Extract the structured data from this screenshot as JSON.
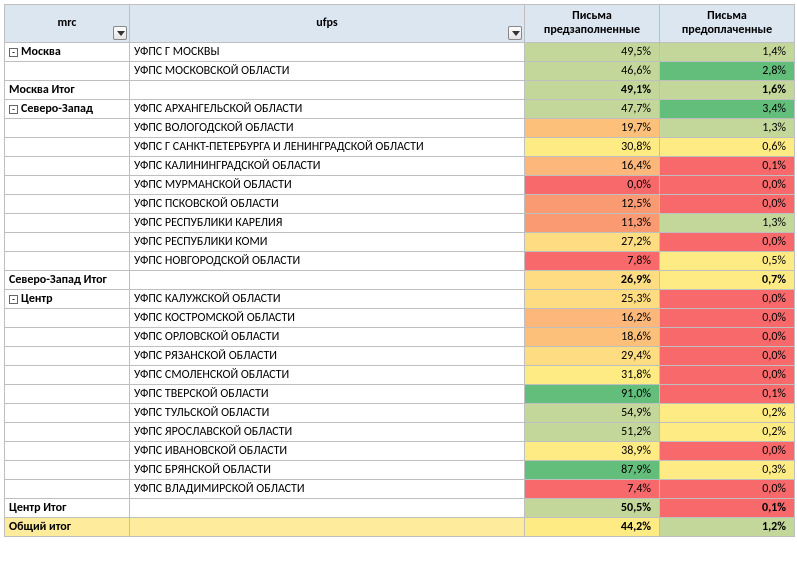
{
  "columns": {
    "mrc": "mrc",
    "ufps": "ufps",
    "v1": "Письма предзаполненные",
    "v2": "Письма предоплаченные"
  },
  "groups": [
    {
      "name": "Москва",
      "rows": [
        {
          "ufps": "УФПС Г МОСКВЫ",
          "v1": "49,5%",
          "c1": "#c4d79b",
          "v2": "1,4%",
          "c2": "#c4d79b"
        },
        {
          "ufps": "УФПС МОСКОВСКОЙ ОБЛАСТИ",
          "v1": "46,6%",
          "c1": "#c4d79b",
          "v2": "2,8%",
          "c2": "#63be7b"
        }
      ],
      "subtotal": {
        "label": "Москва Итог",
        "v1": "49,1%",
        "c1": "#c4d79b",
        "v2": "1,6%",
        "c2": "#c4d79b"
      }
    },
    {
      "name": "Северо-Запад",
      "rows": [
        {
          "ufps": "УФПС АРХАНГЕЛЬСКОЙ ОБЛАСТИ",
          "v1": "47,7%",
          "c1": "#c4d79b",
          "v2": "3,4%",
          "c2": "#63be7b"
        },
        {
          "ufps": "УФПС ВОЛОГОДСКОЙ ОБЛАСТИ",
          "v1": "19,7%",
          "c1": "#fdc07a",
          "v2": "1,3%",
          "c2": "#c4d79b"
        },
        {
          "ufps": "УФПС Г САНКТ-ПЕТЕРБУРГА И ЛЕНИНГРАДСКОЙ ОБЛАСТИ",
          "v1": "30,8%",
          "c1": "#ffeb84",
          "v2": "0,6%",
          "c2": "#ffeb84"
        },
        {
          "ufps": "УФПС КАЛИНИНГРАДСКОЙ ОБЛАСТИ",
          "v1": "16,4%",
          "c1": "#fdb77a",
          "v2": "0,1%",
          "c2": "#f8696b"
        },
        {
          "ufps": "УФПС МУРМАНСКОЙ ОБЛАСТИ",
          "v1": "0,0%",
          "c1": "#f8696b",
          "v2": "0,0%",
          "c2": "#f8696b"
        },
        {
          "ufps": "УФПС ПСКОВСКОЙ ОБЛАСТИ",
          "v1": "12,5%",
          "c1": "#fa9a73",
          "v2": "0,0%",
          "c2": "#f8696b"
        },
        {
          "ufps": "УФПС РЕСПУБЛИКИ КАРЕЛИЯ",
          "v1": "11,3%",
          "c1": "#fa9a73",
          "v2": "1,3%",
          "c2": "#c4d79b"
        },
        {
          "ufps": "УФПС РЕСПУБЛИКИ КОМИ",
          "v1": "27,2%",
          "c1": "#fedc82",
          "v2": "0,0%",
          "c2": "#f8696b"
        },
        {
          "ufps": "УФПС НОВГОРОДСКОЙ ОБЛАСТИ",
          "v1": "7,8%",
          "c1": "#f8696b",
          "v2": "0,5%",
          "c2": "#ffeb84"
        }
      ],
      "subtotal": {
        "label": "Северо-Запад Итог",
        "v1": "26,9%",
        "c1": "#fedc82",
        "v2": "0,7%",
        "c2": "#ffeb84"
      }
    },
    {
      "name": "Центр",
      "rows": [
        {
          "ufps": "УФПС КАЛУЖСКОЙ ОБЛАСТИ",
          "v1": "25,3%",
          "c1": "#fedc82",
          "v2": "0,0%",
          "c2": "#f8696b"
        },
        {
          "ufps": "УФПС КОСТРОМСКОЙ ОБЛАСТИ",
          "v1": "16,2%",
          "c1": "#fdb77a",
          "v2": "0,0%",
          "c2": "#f8696b"
        },
        {
          "ufps": "УФПС ОРЛОВСКОЙ ОБЛАСТИ",
          "v1": "18,6%",
          "c1": "#fdc07a",
          "v2": "0,0%",
          "c2": "#f8696b"
        },
        {
          "ufps": "УФПС РЯЗАНСКОЙ ОБЛАСТИ",
          "v1": "29,4%",
          "c1": "#fedc82",
          "v2": "0,0%",
          "c2": "#f8696b"
        },
        {
          "ufps": "УФПС СМОЛЕНСКОЙ ОБЛАСТИ",
          "v1": "31,8%",
          "c1": "#ffeb84",
          "v2": "0,0%",
          "c2": "#f8696b"
        },
        {
          "ufps": "УФПС ТВЕРСКОЙ ОБЛАСТИ",
          "v1": "91,0%",
          "c1": "#63be7b",
          "v2": "0,1%",
          "c2": "#f8696b"
        },
        {
          "ufps": "УФПС ТУЛЬСКОЙ ОБЛАСТИ",
          "v1": "54,9%",
          "c1": "#c4d79b",
          "v2": "0,2%",
          "c2": "#ffeb84"
        },
        {
          "ufps": "УФПС ЯРОСЛАВСКОЙ ОБЛАСТИ",
          "v1": "51,2%",
          "c1": "#c4d79b",
          "v2": "0,2%",
          "c2": "#ffeb84"
        },
        {
          "ufps": "УФПС ИВАНОВСКОЙ ОБЛАСТИ",
          "v1": "38,9%",
          "c1": "#ffeb84",
          "v2": "0,0%",
          "c2": "#f8696b"
        },
        {
          "ufps": "УФПС БРЯНСКОЙ ОБЛАСТИ",
          "v1": "87,9%",
          "c1": "#63be7b",
          "v2": "0,3%",
          "c2": "#ffeb84"
        },
        {
          "ufps": "УФПС ВЛАДИМИРСКОЙ ОБЛАСТИ",
          "v1": "7,4%",
          "c1": "#f8696b",
          "v2": "0,0%",
          "c2": "#f8696b"
        }
      ],
      "subtotal": {
        "label": "Центр Итог",
        "v1": "50,5%",
        "c1": "#c4d79b",
        "v2": "0,1%",
        "c2": "#f8696b"
      }
    }
  ],
  "grand": {
    "label": "Общий итог",
    "v1": "44,2%",
    "c1": "#ffeb84",
    "v2": "1,2%",
    "c2": "#c4d79b"
  }
}
